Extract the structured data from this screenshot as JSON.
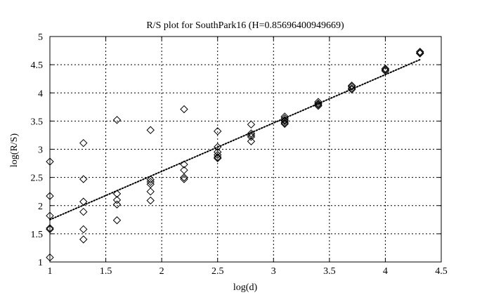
{
  "chart_data": {
    "type": "scatter",
    "title": "R/S plot for SouthPark16 (H=0.85696400949669)",
    "xlabel": "log(d)",
    "ylabel": "log(R/S)",
    "xlim": [
      1,
      4.5
    ],
    "ylim": [
      1,
      5
    ],
    "xticks": [
      1,
      1.5,
      2,
      2.5,
      3,
      3.5,
      4,
      4.5
    ],
    "xtick_labels": [
      "1",
      "1.5",
      "2",
      "2.5",
      "3",
      "3.5",
      "4",
      "4.5"
    ],
    "yticks": [
      1,
      1.5,
      2,
      2.5,
      3,
      3.5,
      4,
      4.5,
      5
    ],
    "ytick_labels": [
      "1",
      "1.5",
      "2",
      "2.5",
      "3",
      "3.5",
      "4",
      "4.5",
      "5"
    ],
    "grid": true,
    "legend": "none",
    "marker": "diamond",
    "colors": {
      "marker": "#000000",
      "fit_line": "#000000",
      "grid": "#000000",
      "axes": "#000000"
    },
    "points": [
      [
        1.0,
        2.78
      ],
      [
        1.0,
        2.17
      ],
      [
        1.0,
        1.82
      ],
      [
        1.0,
        1.6
      ],
      [
        1.0,
        1.58
      ],
      [
        1.0,
        1.08
      ],
      [
        1.3,
        3.11
      ],
      [
        1.3,
        2.47
      ],
      [
        1.3,
        2.07
      ],
      [
        1.3,
        1.89
      ],
      [
        1.3,
        1.58
      ],
      [
        1.3,
        1.4
      ],
      [
        1.6,
        3.52
      ],
      [
        1.6,
        2.21
      ],
      [
        1.6,
        2.1
      ],
      [
        1.6,
        2.02
      ],
      [
        1.6,
        1.74
      ],
      [
        1.9,
        3.34
      ],
      [
        1.9,
        2.46
      ],
      [
        1.9,
        2.42
      ],
      [
        1.9,
        2.38
      ],
      [
        1.9,
        2.25
      ],
      [
        1.9,
        2.09
      ],
      [
        2.2,
        3.71
      ],
      [
        2.2,
        2.73
      ],
      [
        2.2,
        2.63
      ],
      [
        2.2,
        2.5
      ],
      [
        2.2,
        2.47
      ],
      [
        2.5,
        3.32
      ],
      [
        2.5,
        3.04
      ],
      [
        2.5,
        2.95
      ],
      [
        2.5,
        2.9
      ],
      [
        2.5,
        2.86
      ],
      [
        2.5,
        2.84
      ],
      [
        2.8,
        3.44
      ],
      [
        2.8,
        3.28
      ],
      [
        2.8,
        3.25
      ],
      [
        2.8,
        3.22
      ],
      [
        2.8,
        3.14
      ],
      [
        3.1,
        3.58
      ],
      [
        3.1,
        3.55
      ],
      [
        3.1,
        3.52
      ],
      [
        3.1,
        3.5
      ],
      [
        3.1,
        3.47
      ],
      [
        3.1,
        3.45
      ],
      [
        3.4,
        3.84
      ],
      [
        3.4,
        3.81
      ],
      [
        3.4,
        3.79
      ],
      [
        3.4,
        3.77
      ],
      [
        3.7,
        4.13
      ],
      [
        3.7,
        4.11
      ],
      [
        3.7,
        4.08
      ],
      [
        3.7,
        4.06
      ],
      [
        4.0,
        4.43
      ],
      [
        4.0,
        4.41
      ],
      [
        4.0,
        4.39
      ],
      [
        4.31,
        4.73
      ],
      [
        4.31,
        4.71
      ],
      [
        4.31,
        4.7
      ]
    ],
    "fit_line": {
      "x": [
        1.0,
        4.31
      ],
      "y": [
        1.75,
        4.59
      ],
      "style": "dotted"
    }
  }
}
